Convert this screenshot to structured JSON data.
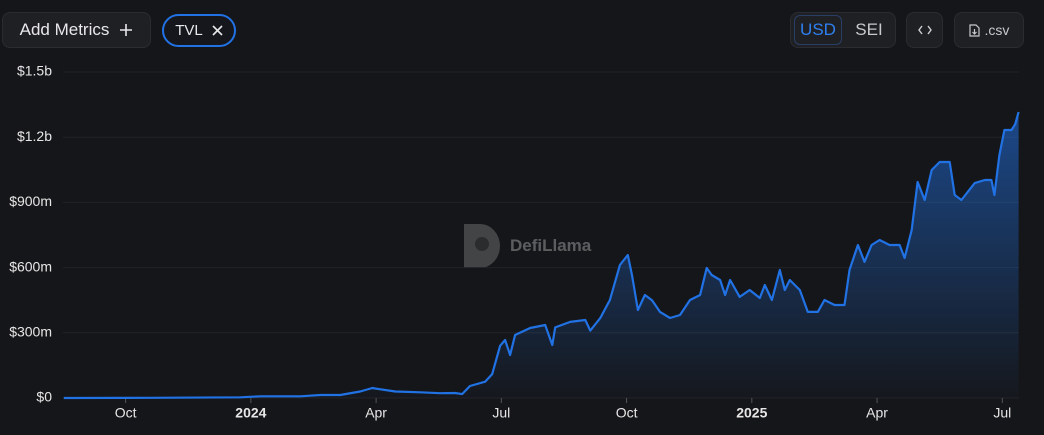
{
  "toolbar": {
    "add_metrics": "Add Metrics",
    "metric_chip": "TVL",
    "currency_options": [
      "USD",
      "SEI"
    ],
    "csv_button": ".csv"
  },
  "watermark": "DefiLlama",
  "chart_data": {
    "type": "area",
    "color": "#2172e5",
    "grid": true,
    "x": [
      0.52,
      2.6,
      4.75,
      5.23,
      6.19,
      6.67,
      7.14,
      7.62,
      7.91,
      8.1,
      8.46,
      9.06,
      9.54,
      9.89,
      10.06,
      10.25,
      10.61,
      10.78,
      10.97,
      11.09,
      11.21,
      11.33,
      11.69,
      12.05,
      12.22,
      12.29,
      12.65,
      13.01,
      13.13,
      13.37,
      13.6,
      13.84,
      14.03,
      14.13,
      14.27,
      14.44,
      14.61,
      14.8,
      15.04,
      15.28,
      15.52,
      15.76,
      15.92,
      16.04,
      16.24,
      16.36,
      16.48,
      16.71,
      16.95,
      17.19,
      17.31,
      17.48,
      17.67,
      17.79,
      17.91,
      18.15,
      18.34,
      18.58,
      18.74,
      18.98,
      19.22,
      19.34,
      19.54,
      19.7,
      19.87,
      20.06,
      20.3,
      20.54,
      20.66,
      20.83,
      20.97,
      21.14,
      21.31,
      21.5,
      21.74,
      21.86,
      22.02,
      22.34,
      22.58,
      22.74,
      22.81,
      22.93,
      23.05,
      23.22,
      23.31,
      23.39
    ],
    "values": [
      0,
      1000000,
      3000000,
      8000000,
      8000000,
      14000000,
      14000000,
      30000000,
      46000000,
      40000000,
      30000000,
      26000000,
      22000000,
      23000000,
      18000000,
      55000000,
      75000000,
      110000000,
      240000000,
      267000000,
      198000000,
      290000000,
      322000000,
      336000000,
      244000000,
      325000000,
      350000000,
      359000000,
      310000000,
      368000000,
      451000000,
      612000000,
      658000000,
      565000000,
      405000000,
      474000000,
      450000000,
      396000000,
      368000000,
      382000000,
      451000000,
      474000000,
      598000000,
      566000000,
      543000000,
      474000000,
      543000000,
      465000000,
      497000000,
      460000000,
      520000000,
      451000000,
      589000000,
      497000000,
      543000000,
      497000000,
      396000000,
      396000000,
      451000000,
      428000000,
      428000000,
      589000000,
      704000000,
      626000000,
      704000000,
      727000000,
      704000000,
      704000000,
      644000000,
      773000000,
      994000000,
      911000000,
      1049000000,
      1086000000,
      1086000000,
      934000000,
      911000000,
      989000000,
      1003000000,
      1003000000,
      934000000,
      1118000000,
      1233000000,
      1233000000,
      1260000000,
      1316000000
    ],
    "xlim": [
      0.5,
      23.4
    ],
    "xticks": [
      {
        "value": 2,
        "label": "Oct"
      },
      {
        "value": 5,
        "label": "2024"
      },
      {
        "value": 8,
        "label": "Apr"
      },
      {
        "value": 11,
        "label": "Jul"
      },
      {
        "value": 14,
        "label": "Oct"
      },
      {
        "value": 17,
        "label": "2025"
      },
      {
        "value": 20,
        "label": "Apr"
      },
      {
        "value": 23,
        "label": "Jul"
      }
    ],
    "ylim": [
      0,
      1500000000
    ],
    "yticks": [
      {
        "value": 0,
        "label": "$0"
      },
      {
        "value": 300000000,
        "label": "$300m"
      },
      {
        "value": 600000000,
        "label": "$600m"
      },
      {
        "value": 900000000,
        "label": "$900m"
      },
      {
        "value": 1200000000,
        "label": "$1.2b"
      },
      {
        "value": 1500000000,
        "label": "$1.5b"
      }
    ]
  }
}
